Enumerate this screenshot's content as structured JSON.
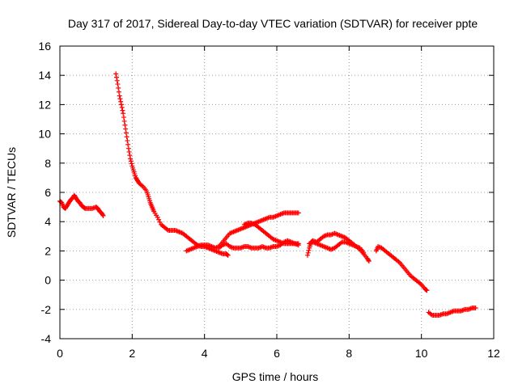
{
  "chart_data": {
    "type": "scatter",
    "title": "Day 317 of 2017, Sidereal Day-to-day VTEC variation (SDTVAR) for receiver ppte",
    "xlabel": "GPS time / hours",
    "ylabel": "SDTVAR / TECUs",
    "xlim": [
      0,
      12
    ],
    "ylim": [
      -4,
      16
    ],
    "xticks": [
      0,
      2,
      4,
      6,
      8,
      10,
      12
    ],
    "yticks": [
      -4,
      -2,
      0,
      2,
      4,
      6,
      8,
      10,
      12,
      14,
      16
    ],
    "grid": true,
    "marker": "plus",
    "color": "#ff0000",
    "series": [
      {
        "name": "SDTVAR ppte",
        "segments": [
          [
            [
              0.0,
              5.4
            ],
            [
              0.05,
              5.3
            ],
            [
              0.1,
              5.0
            ],
            [
              0.15,
              4.9
            ],
            [
              0.2,
              5.1
            ],
            [
              0.25,
              5.3
            ],
            [
              0.3,
              5.5
            ],
            [
              0.35,
              5.6
            ],
            [
              0.4,
              5.8
            ],
            [
              0.45,
              5.6
            ],
            [
              0.5,
              5.4
            ],
            [
              0.55,
              5.3
            ],
            [
              0.6,
              5.1
            ],
            [
              0.65,
              5.0
            ],
            [
              0.7,
              4.9
            ],
            [
              0.8,
              4.9
            ],
            [
              0.9,
              4.9
            ],
            [
              1.0,
              5.0
            ],
            [
              1.05,
              4.9
            ],
            [
              1.1,
              4.7
            ],
            [
              1.15,
              4.6
            ],
            [
              1.2,
              4.4
            ]
          ],
          [
            [
              1.55,
              14.1
            ],
            [
              1.6,
              13.4
            ],
            [
              1.65,
              12.6
            ],
            [
              1.7,
              12.0
            ],
            [
              1.75,
              11.4
            ],
            [
              1.8,
              10.6
            ],
            [
              1.85,
              9.8
            ],
            [
              1.9,
              9.0
            ],
            [
              1.95,
              8.3
            ],
            [
              2.0,
              7.8
            ],
            [
              2.05,
              7.4
            ],
            [
              2.1,
              7.0
            ],
            [
              2.15,
              6.8
            ],
            [
              2.2,
              6.6
            ],
            [
              2.3,
              6.4
            ],
            [
              2.4,
              6.1
            ],
            [
              2.45,
              5.7
            ],
            [
              2.5,
              5.3
            ],
            [
              2.55,
              5.0
            ],
            [
              2.6,
              4.7
            ],
            [
              2.7,
              4.3
            ],
            [
              2.8,
              3.8
            ],
            [
              2.9,
              3.6
            ],
            [
              3.0,
              3.4
            ],
            [
              3.1,
              3.4
            ],
            [
              3.2,
              3.4
            ],
            [
              3.3,
              3.3
            ],
            [
              3.4,
              3.2
            ],
            [
              3.5,
              3.0
            ],
            [
              3.6,
              2.8
            ],
            [
              3.7,
              2.6
            ],
            [
              3.8,
              2.4
            ],
            [
              3.9,
              2.3
            ],
            [
              4.0,
              2.3
            ],
            [
              4.1,
              2.2
            ],
            [
              4.2,
              2.1
            ],
            [
              4.3,
              2.0
            ],
            [
              4.4,
              1.9
            ],
            [
              4.5,
              1.8
            ],
            [
              4.6,
              1.8
            ],
            [
              4.65,
              1.7
            ]
          ],
          [
            [
              3.5,
              2.0
            ],
            [
              3.6,
              2.1
            ],
            [
              3.7,
              2.2
            ],
            [
              3.8,
              2.3
            ],
            [
              3.9,
              2.4
            ],
            [
              4.0,
              2.4
            ],
            [
              4.1,
              2.4
            ],
            [
              4.2,
              2.3
            ],
            [
              4.3,
              2.2
            ],
            [
              4.4,
              2.3
            ],
            [
              4.5,
              2.6
            ],
            [
              4.6,
              2.9
            ],
            [
              4.7,
              3.2
            ],
            [
              4.8,
              3.3
            ],
            [
              4.9,
              3.4
            ],
            [
              5.0,
              3.5
            ],
            [
              5.1,
              3.6
            ],
            [
              5.2,
              3.7
            ],
            [
              5.3,
              3.8
            ],
            [
              5.4,
              3.9
            ],
            [
              5.5,
              4.0
            ],
            [
              5.6,
              4.1
            ],
            [
              5.7,
              4.2
            ],
            [
              5.8,
              4.3
            ],
            [
              5.9,
              4.3
            ],
            [
              6.0,
              4.4
            ],
            [
              6.1,
              4.5
            ],
            [
              6.2,
              4.6
            ],
            [
              6.3,
              4.6
            ],
            [
              6.4,
              4.6
            ],
            [
              6.5,
              4.6
            ],
            [
              6.6,
              4.6
            ]
          ],
          [
            [
              4.4,
              2.2
            ],
            [
              4.5,
              2.4
            ],
            [
              4.6,
              2.5
            ],
            [
              4.7,
              2.3
            ],
            [
              4.8,
              2.2
            ],
            [
              4.9,
              2.2
            ],
            [
              5.0,
              2.2
            ],
            [
              5.1,
              2.3
            ],
            [
              5.2,
              2.3
            ],
            [
              5.3,
              2.2
            ],
            [
              5.4,
              2.2
            ],
            [
              5.5,
              2.2
            ],
            [
              5.6,
              2.3
            ],
            [
              5.7,
              2.2
            ],
            [
              5.8,
              2.2
            ],
            [
              5.9,
              2.3
            ],
            [
              6.0,
              2.3
            ],
            [
              6.1,
              2.4
            ],
            [
              6.2,
              2.6
            ],
            [
              6.3,
              2.7
            ],
            [
              6.4,
              2.6
            ],
            [
              6.5,
              2.5
            ],
            [
              6.6,
              2.4
            ]
          ],
          [
            [
              5.1,
              3.8
            ],
            [
              5.2,
              3.9
            ],
            [
              5.3,
              3.9
            ],
            [
              5.4,
              3.8
            ],
            [
              5.5,
              3.6
            ],
            [
              5.6,
              3.4
            ],
            [
              5.7,
              3.2
            ],
            [
              5.8,
              3.0
            ],
            [
              5.9,
              2.8
            ],
            [
              6.0,
              2.7
            ],
            [
              6.1,
              2.6
            ],
            [
              6.2,
              2.5
            ],
            [
              6.3,
              2.5
            ],
            [
              6.4,
              2.5
            ],
            [
              6.5,
              2.5
            ],
            [
              6.6,
              2.5
            ]
          ],
          [
            [
              6.85,
              1.7
            ],
            [
              6.9,
              2.2
            ],
            [
              6.95,
              2.6
            ],
            [
              7.0,
              2.7
            ],
            [
              7.1,
              2.6
            ],
            [
              7.2,
              2.8
            ],
            [
              7.3,
              3.0
            ],
            [
              7.4,
              3.1
            ],
            [
              7.5,
              3.1
            ],
            [
              7.6,
              3.2
            ],
            [
              7.7,
              3.1
            ],
            [
              7.8,
              3.0
            ],
            [
              7.9,
              2.9
            ],
            [
              8.0,
              2.7
            ],
            [
              8.1,
              2.5
            ],
            [
              8.2,
              2.3
            ],
            [
              8.3,
              2.1
            ],
            [
              8.4,
              1.8
            ],
            [
              8.5,
              1.5
            ],
            [
              8.55,
              1.3
            ]
          ],
          [
            [
              6.9,
              2.5
            ],
            [
              7.0,
              2.6
            ],
            [
              7.1,
              2.5
            ],
            [
              7.2,
              2.4
            ],
            [
              7.3,
              2.3
            ],
            [
              7.4,
              2.2
            ],
            [
              7.5,
              2.1
            ],
            [
              7.6,
              2.2
            ],
            [
              7.7,
              2.4
            ],
            [
              7.8,
              2.6
            ],
            [
              7.9,
              2.6
            ],
            [
              8.0,
              2.5
            ],
            [
              8.1,
              2.4
            ],
            [
              8.2,
              2.3
            ],
            [
              8.3,
              2.2
            ],
            [
              8.4,
              1.9
            ]
          ],
          [
            [
              8.75,
              2.0
            ],
            [
              8.8,
              2.3
            ],
            [
              8.9,
              2.2
            ],
            [
              9.0,
              2.0
            ],
            [
              9.1,
              1.8
            ],
            [
              9.2,
              1.6
            ],
            [
              9.3,
              1.4
            ],
            [
              9.4,
              1.2
            ],
            [
              9.5,
              0.9
            ],
            [
              9.6,
              0.6
            ],
            [
              9.7,
              0.3
            ],
            [
              9.8,
              0.1
            ],
            [
              9.9,
              -0.1
            ],
            [
              10.0,
              -0.3
            ],
            [
              10.1,
              -0.6
            ],
            [
              10.15,
              -0.7
            ]
          ],
          [
            [
              10.2,
              -2.2
            ],
            [
              10.3,
              -2.4
            ],
            [
              10.4,
              -2.4
            ],
            [
              10.5,
              -2.4
            ],
            [
              10.6,
              -2.3
            ],
            [
              10.7,
              -2.3
            ],
            [
              10.8,
              -2.2
            ],
            [
              10.9,
              -2.1
            ],
            [
              11.0,
              -2.1
            ],
            [
              11.1,
              -2.1
            ],
            [
              11.2,
              -2.0
            ],
            [
              11.3,
              -2.0
            ],
            [
              11.4,
              -1.9
            ],
            [
              11.5,
              -1.9
            ]
          ]
        ]
      }
    ]
  }
}
